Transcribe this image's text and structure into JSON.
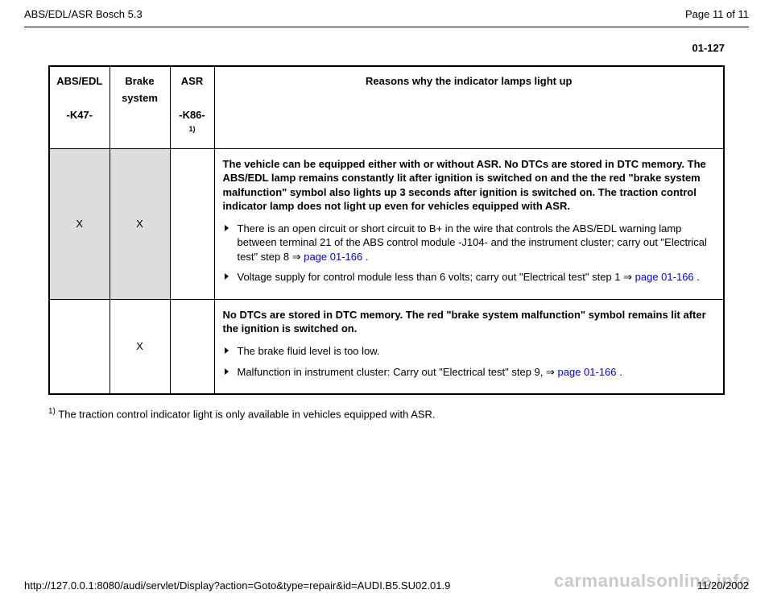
{
  "header": {
    "title_left": "ABS/EDL/ASR Bosch 5.3",
    "title_right": "Page 11 of 11"
  },
  "page_number": "01-127",
  "table": {
    "headers": {
      "abs_edl_line1": "ABS/EDL",
      "abs_edl_line2": "-K47-",
      "brake": "Brake system",
      "asr_line1": "ASR",
      "asr_line2": "-K86-",
      "asr_sup": "1)",
      "reasons": "Reasons why the indicator lamps light up"
    },
    "rows": [
      {
        "abs": "X",
        "brake": "X",
        "asr": "",
        "bold_text": "The vehicle can be equipped either with or without ASR. No DTCs are stored in DTC memory. The ABS/EDL lamp remains constantly lit after ignition is switched on and the the red \"brake system malfunction\" symbol also lights up 3 seconds after ignition is switched on. The traction control indicator lamp does not light up even for vehicles equipped with ASR.",
        "bullets": [
          {
            "text_before": "There is an open circuit or short circuit to B+ in the wire that controls the ABS/EDL warning lamp between terminal 21 of the ABS control module -J104- and the instrument cluster; carry out \"Electrical test\" step 8  ⇒ ",
            "link": "page 01-166",
            "text_after": " ."
          },
          {
            "text_before": "Voltage supply for control module less than 6 volts; carry out \"Electrical test\" step 1  ⇒ ",
            "link": "page 01-166",
            "text_after": " ."
          }
        ]
      },
      {
        "abs": "",
        "brake": "X",
        "asr": "",
        "bold_text": "No DTCs are stored in DTC memory. The red \"brake system malfunction\" symbol remains lit after the ignition is switched on.",
        "bullets": [
          {
            "text_before": "The brake fluid level is too low.",
            "link": "",
            "text_after": ""
          },
          {
            "text_before": "Malfunction in instrument cluster: Carry out \"Electrical test\" step 9,  ⇒ ",
            "link": "page 01-166",
            "text_after": " ."
          }
        ]
      }
    ]
  },
  "footnote": {
    "sup": "1)",
    "text": " The traction control indicator light is only available in vehicles equipped with ASR."
  },
  "footer": {
    "url": "http://127.0.0.1:8080/audi/servlet/Display?action=Goto&type=repair&id=AUDI.B5.SU02.01.9",
    "date": "11/20/2002"
  },
  "watermark": "carmanualsonline.info",
  "styling": {
    "link_color": "#0000cc",
    "shaded_bg": "#dddddd",
    "border_color": "#000000",
    "background": "#ffffff",
    "body_font_size": 13
  }
}
